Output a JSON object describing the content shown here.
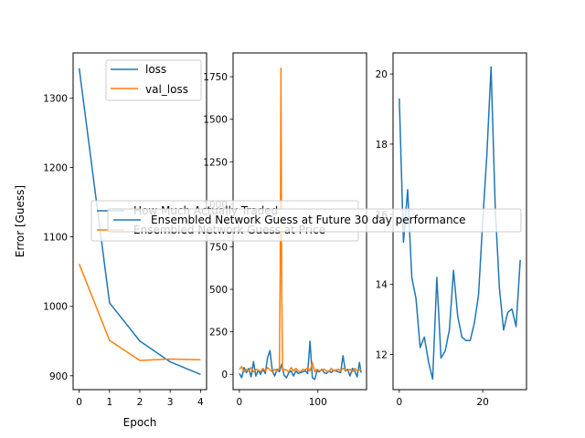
{
  "colors": {
    "blue": "#1f77b4",
    "orange": "#ff7f0e",
    "axis": "#000000",
    "background": "#ffffff"
  },
  "chart_data": [
    {
      "type": "line",
      "title": "",
      "xlabel": "Epoch",
      "ylabel": "Error [Guess]",
      "xlim": [
        -0.2,
        4.2
      ],
      "ylim": [
        880,
        1365
      ],
      "xticks": [
        0,
        1,
        2,
        3,
        4
      ],
      "xtick_labels": [
        "0",
        "1",
        "2",
        "3",
        "4"
      ],
      "yticks": [
        900,
        1000,
        1100,
        1200,
        1300
      ],
      "ytick_labels": [
        "900",
        "1000",
        "1100",
        "1200",
        "1300"
      ],
      "grid": false,
      "legend": {
        "position": "top-right",
        "entries": [
          "loss",
          "val_loss"
        ]
      },
      "series": [
        {
          "name": "loss",
          "color": "#1f77b4",
          "x": [
            0,
            1,
            2,
            3,
            4
          ],
          "y": [
            1343,
            1005,
            950,
            920,
            902
          ]
        },
        {
          "name": "val_loss",
          "color": "#ff7f0e",
          "x": [
            0,
            1,
            2,
            3,
            4
          ],
          "y": [
            1061,
            951,
            922,
            924,
            923
          ]
        }
      ]
    },
    {
      "type": "line",
      "title": "",
      "xlabel": "",
      "ylabel": "",
      "xlim": [
        -8,
        162
      ],
      "ylim": [
        -90,
        1890
      ],
      "xticks": [
        0,
        100
      ],
      "xtick_labels": [
        "0",
        "100"
      ],
      "yticks": [
        0,
        250,
        500,
        750,
        1000,
        1250,
        1500,
        1750
      ],
      "ytick_labels": [
        "0",
        "250",
        "500",
        "750",
        "1000",
        "1250",
        "1500",
        "1750"
      ],
      "grid": false,
      "legend": {
        "position": "center",
        "entries": [
          "How Much Actually Traded",
          "Ensembled Network Guess at Price"
        ]
      },
      "series": [
        {
          "name": "How Much Actually Traded",
          "color": "#1f77b4",
          "x": [
            0,
            3,
            6,
            9,
            12,
            15,
            18,
            21,
            24,
            27,
            30,
            33,
            36,
            39,
            42,
            45,
            48,
            51,
            54,
            57,
            60,
            63,
            66,
            69,
            72,
            75,
            78,
            81,
            84,
            87,
            90,
            93,
            96,
            99,
            102,
            105,
            108,
            111,
            114,
            117,
            120,
            123,
            126,
            129,
            132,
            135,
            138,
            141,
            144,
            147,
            150,
            153,
            155
          ],
          "y": [
            5,
            -20,
            40,
            10,
            35,
            -15,
            75,
            -10,
            25,
            0,
            30,
            5,
            100,
            140,
            20,
            -10,
            30,
            15,
            60,
            -5,
            -20,
            10,
            20,
            -10,
            20,
            5,
            10,
            15,
            20,
            5,
            195,
            -20,
            -30,
            20,
            15,
            30,
            10,
            5,
            20,
            10,
            25,
            20,
            15,
            10,
            110,
            20,
            30,
            -10,
            35,
            20,
            -15,
            70,
            10
          ]
        },
        {
          "name": "Ensembled Network Guess at Price",
          "color": "#ff7f0e",
          "x": [
            0,
            3,
            6,
            9,
            12,
            15,
            18,
            21,
            24,
            27,
            30,
            33,
            36,
            39,
            42,
            45,
            48,
            51,
            52,
            53,
            54,
            55,
            57,
            60,
            63,
            66,
            69,
            72,
            75,
            78,
            81,
            84,
            87,
            90,
            93,
            96,
            99,
            102,
            105,
            108,
            111,
            114,
            117,
            120,
            123,
            126,
            129,
            132,
            135,
            138,
            141,
            144,
            147,
            150,
            153,
            155
          ],
          "y": [
            30,
            45,
            15,
            30,
            20,
            40,
            15,
            30,
            25,
            15,
            35,
            20,
            40,
            25,
            15,
            30,
            20,
            35,
            600,
            1800,
            500,
            20,
            30,
            25,
            15,
            40,
            20,
            35,
            20,
            15,
            30,
            25,
            40,
            20,
            70,
            15,
            30,
            20,
            25,
            30,
            20,
            15,
            35,
            20,
            25,
            30,
            20,
            35,
            25,
            20,
            30,
            15,
            35,
            20,
            25,
            30
          ]
        }
      ]
    },
    {
      "type": "line",
      "title": "",
      "xlabel": "",
      "ylabel": "",
      "xlim": [
        -1.5,
        30.5
      ],
      "ylim": [
        11,
        20.6
      ],
      "xticks": [
        0,
        20
      ],
      "xtick_labels": [
        "0",
        "20"
      ],
      "yticks": [
        12,
        14,
        16,
        18,
        20
      ],
      "ytick_labels": [
        "12",
        "14",
        "16",
        "18",
        "20"
      ],
      "grid": false,
      "legend": {
        "position": "center",
        "entries": [
          "Ensembled Network Guess at Future 30 day performance"
        ]
      },
      "series": [
        {
          "name": "Ensembled Network Guess at Future 30 day performance",
          "color": "#1f77b4",
          "x": [
            0,
            1,
            2,
            3,
            4,
            5,
            6,
            7,
            8,
            9,
            10,
            11,
            12,
            13,
            14,
            15,
            16,
            17,
            18,
            19,
            20,
            21,
            22,
            23,
            24,
            25,
            26,
            27,
            28,
            29
          ],
          "y": [
            19.3,
            15.2,
            16.7,
            14.2,
            13.6,
            12.2,
            12.5,
            11.8,
            11.3,
            14.2,
            11.9,
            12.1,
            12.7,
            14.4,
            13.1,
            12.5,
            12.4,
            12.4,
            12.9,
            13.7,
            15.8,
            17.7,
            20.2,
            16.2,
            13.9,
            12.7,
            13.2,
            13.3,
            12.8,
            14.7
          ]
        }
      ]
    }
  ]
}
